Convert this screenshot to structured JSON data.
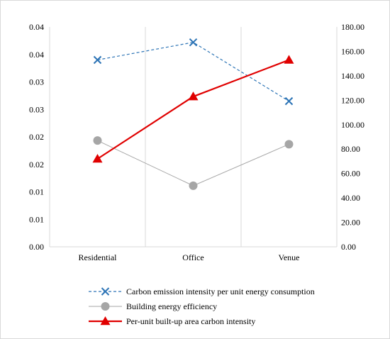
{
  "chart_data": {
    "type": "line",
    "categories": [
      "Residential",
      "Office",
      "Venue"
    ],
    "left_axis": {
      "ylim": [
        0,
        0.04
      ],
      "tick_values": [
        0,
        0.005,
        0.01,
        0.015,
        0.02,
        0.025,
        0.03,
        0.035,
        0.04
      ],
      "tick_labels": [
        "0.00",
        "0.01",
        "0.01",
        "0.02",
        "0.02",
        "0.03",
        "0.03",
        "0.04",
        "0.04"
      ]
    },
    "right_axis": {
      "ylim": [
        0,
        180
      ],
      "tick_values": [
        0,
        20,
        40,
        60,
        80,
        100,
        120,
        140,
        160,
        180
      ],
      "tick_labels": [
        "0.00",
        "20.00",
        "40.00",
        "60.00",
        "80.00",
        "100.00",
        "120.00",
        "140.00",
        "160.00",
        "180.00"
      ]
    },
    "grid": "vertical",
    "legend_position": "bottom",
    "series": [
      {
        "name": "Carbon emission intensity per unit energy consumption",
        "axis": "left",
        "values": [
          0.034,
          0.0372,
          0.0265
        ],
        "color": "#2E75B6",
        "line_style": "dashed",
        "marker": "x"
      },
      {
        "name": "Building energy efficiency",
        "axis": "right",
        "values": [
          87,
          50,
          84
        ],
        "color": "#A6A6A6",
        "line_style": "solid",
        "marker": "circle"
      },
      {
        "name": "Per-unit built-up area carbon intensity",
        "axis": "right",
        "values": [
          72,
          123,
          153
        ],
        "color": "#E00000",
        "line_style": "solid",
        "marker": "triangle"
      }
    ]
  }
}
